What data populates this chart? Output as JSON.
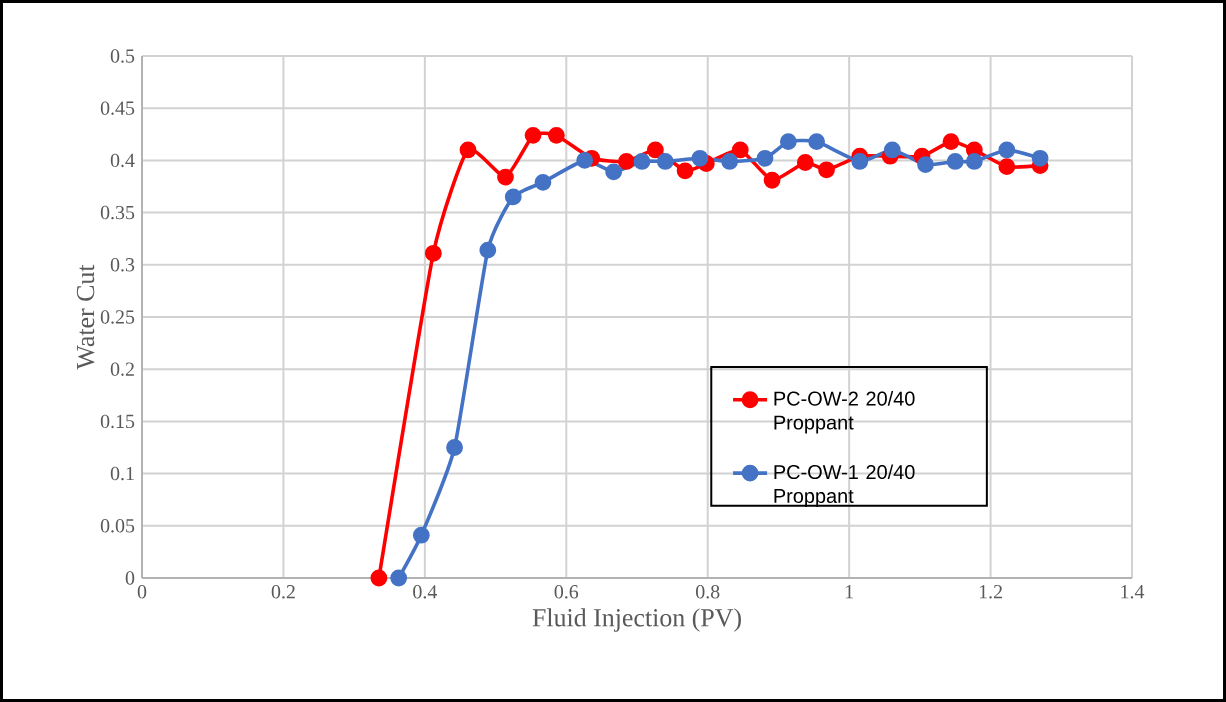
{
  "chart_data": {
    "type": "line",
    "xlabel": "Fluid Injection (PV)",
    "ylabel": "Water Cut",
    "xlim": [
      0,
      1.4
    ],
    "xticks": [
      0,
      0.2,
      0.4,
      0.6,
      0.8,
      1,
      1.2,
      1.4
    ],
    "ylim": [
      0,
      0.5
    ],
    "yticks": [
      0,
      0.05,
      0.1,
      0.15,
      0.2,
      0.25,
      0.3,
      0.35,
      0.4,
      0.45,
      0.5
    ],
    "grid": true,
    "legend": "bottom right",
    "marker": "circle",
    "line_style": "solid",
    "series": [
      {
        "name": "PC-OW-2 20/40 Proppant",
        "color": "#ff0000",
        "x": [
          0.335,
          0.412,
          0.461,
          0.514,
          0.553,
          0.586,
          0.636,
          0.685,
          0.726,
          0.768,
          0.798,
          0.846,
          0.891,
          0.938,
          0.968,
          1.015,
          1.058,
          1.103,
          1.144,
          1.177,
          1.223,
          1.27
        ],
        "values": [
          0,
          0.311,
          0.41,
          0.384,
          0.424,
          0.424,
          0.402,
          0.399,
          0.41,
          0.39,
          0.397,
          0.41,
          0.381,
          0.398,
          0.391,
          0.404,
          0.404,
          0.404,
          0.418,
          0.41,
          0.394,
          0.395
        ]
      },
      {
        "name": "PC-OW-1 20/40 Proppant",
        "color": "#4472c4",
        "x": [
          0.363,
          0.395,
          0.442,
          0.489,
          0.525,
          0.567,
          0.626,
          0.667,
          0.707,
          0.74,
          0.789,
          0.831,
          0.881,
          0.914,
          0.954,
          1.015,
          1.061,
          1.108,
          1.15,
          1.177,
          1.223,
          1.27
        ],
        "values": [
          0,
          0.041,
          0.125,
          0.314,
          0.365,
          0.379,
          0.4,
          0.389,
          0.399,
          0.399,
          0.402,
          0.399,
          0.402,
          0.418,
          0.418,
          0.399,
          0.41,
          0.396,
          0.399,
          0.399,
          0.41,
          0.402
        ]
      }
    ]
  }
}
